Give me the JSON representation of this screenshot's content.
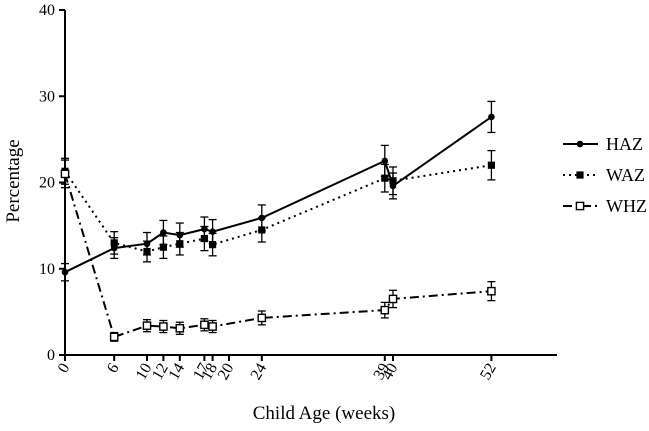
{
  "chart_data": {
    "type": "line",
    "title": "",
    "xlabel": "Child Age (weeks)",
    "ylabel": "Percentage",
    "xlim": [
      0,
      60
    ],
    "ylim": [
      0,
      40
    ],
    "x_ticks": [
      0,
      6,
      10,
      12,
      14,
      17,
      18,
      20,
      24,
      39,
      40,
      52
    ],
    "x_tick_labels": [
      "0",
      "6",
      "10",
      "12",
      "14",
      "17",
      "18",
      "20",
      "24",
      "39",
      "40",
      "52"
    ],
    "y_ticks": [
      0,
      10,
      20,
      30,
      40
    ],
    "y_tick_labels": [
      "0",
      "10",
      "20",
      "30",
      "40"
    ],
    "grid": false,
    "legend_position": "right",
    "series": [
      {
        "name": "HAZ",
        "line_style": "solid",
        "marker": "filled-circle",
        "color": "#000000",
        "x": [
          0,
          6,
          10,
          12,
          14,
          17,
          18,
          24,
          39,
          40,
          52
        ],
        "y": [
          9.6,
          12.4,
          12.9,
          14.2,
          13.9,
          14.6,
          14.3,
          15.9,
          22.5,
          19.6,
          27.6
        ],
        "err": [
          1.0,
          1.2,
          1.3,
          1.4,
          1.4,
          1.4,
          1.4,
          1.5,
          1.8,
          1.5,
          1.8
        ]
      },
      {
        "name": "WAZ",
        "line_style": "dotted",
        "marker": "filled-square",
        "color": "#000000",
        "x": [
          0,
          6,
          10,
          12,
          14,
          17,
          18,
          24,
          39,
          40,
          52
        ],
        "y": [
          21.3,
          13.0,
          12.0,
          12.5,
          12.9,
          13.5,
          12.8,
          14.5,
          20.5,
          20.2,
          22.0
        ],
        "err": [
          1.5,
          1.3,
          1.2,
          1.3,
          1.3,
          1.4,
          1.3,
          1.4,
          1.6,
          1.6,
          1.7
        ]
      },
      {
        "name": "WHZ",
        "line_style": "dash-dot",
        "marker": "open-square",
        "color": "#000000",
        "x": [
          0,
          6,
          10,
          12,
          14,
          17,
          18,
          24,
          39,
          40,
          52
        ],
        "y": [
          21.0,
          2.1,
          3.4,
          3.3,
          3.1,
          3.5,
          3.3,
          4.3,
          5.2,
          6.5,
          7.4
        ],
        "err": [
          1.6,
          0.5,
          0.7,
          0.7,
          0.7,
          0.7,
          0.7,
          0.8,
          0.9,
          1.0,
          1.1
        ]
      }
    ]
  }
}
